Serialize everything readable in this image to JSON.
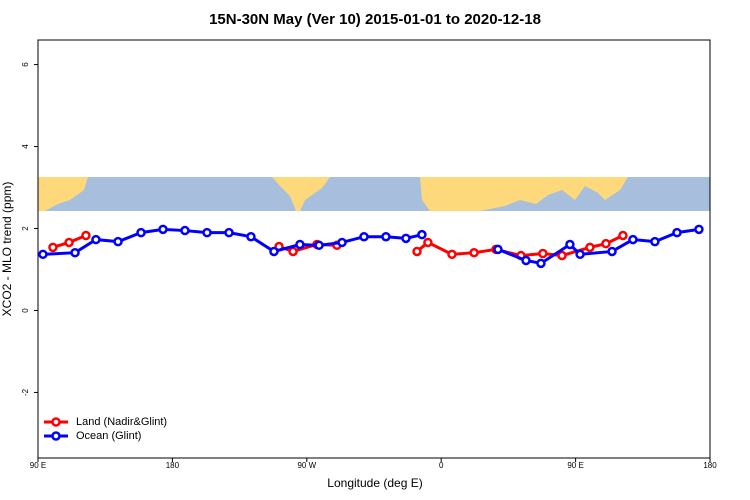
{
  "chart_data": {
    "type": "line",
    "title": "15N-30N May (Ver 10)   2015-01-01 to 2020-12-18",
    "x_label": "Longitude (deg E)",
    "y_label": "XCO2 - MLO trend (ppm)",
    "xlim": [
      90,
      540
    ],
    "xticks": [
      {
        "value": 90,
        "label": "90 E"
      },
      180,
      {
        "value": 270,
        "label": "90 W"
      },
      {
        "value": 360,
        "label": "0"
      },
      {
        "value": 450,
        "label": "90 E"
      },
      {
        "value": 540,
        "label": "180"
      }
    ],
    "ylim": [
      -3.6,
      6.6
    ],
    "yticks": [
      -2,
      0,
      2,
      4,
      6
    ],
    "legend": "bottom-left",
    "series": [
      {
        "name": "Land (Nadir&Glint)",
        "color": "#ff0000",
        "x": [
          100,
          110.8,
          122.1,
          null,
          251.4,
          260.8,
          276.8,
          290.2,
          null,
          343.8,
          351.1,
          367.2,
          382,
          396.7,
          413.4,
          428.1,
          440.9,
          459.6,
          470.3,
          481.7
        ],
        "values": [
          1.54,
          1.66,
          1.83,
          null,
          1.56,
          1.44,
          1.61,
          1.59,
          null,
          1.44,
          1.66,
          1.37,
          1.41,
          1.49,
          1.34,
          1.39,
          1.34,
          1.54,
          1.63,
          1.83
        ]
      },
      {
        "name": "Ocean (Glint)",
        "color": "#0000ff",
        "x": [
          93.3,
          114.8,
          128.8,
          143.6,
          159,
          173.7,
          188.4,
          203.2,
          217.9,
          232.6,
          248,
          265.4,
          278.2,
          293.6,
          308.3,
          323,
          336.4,
          347.1,
          null,
          398,
          416.8,
          426.8,
          446.2,
          453,
          474.4,
          488.4,
          503.1,
          517.9,
          532.6
        ],
        "values": [
          1.37,
          1.41,
          1.73,
          1.68,
          1.9,
          1.98,
          1.95,
          1.9,
          1.9,
          1.8,
          1.44,
          1.61,
          1.59,
          1.66,
          1.8,
          1.8,
          1.76,
          1.85,
          null,
          1.49,
          1.22,
          1.15,
          1.61,
          1.37,
          1.44,
          1.73,
          1.68,
          1.9,
          1.98
        ]
      }
    ]
  }
}
